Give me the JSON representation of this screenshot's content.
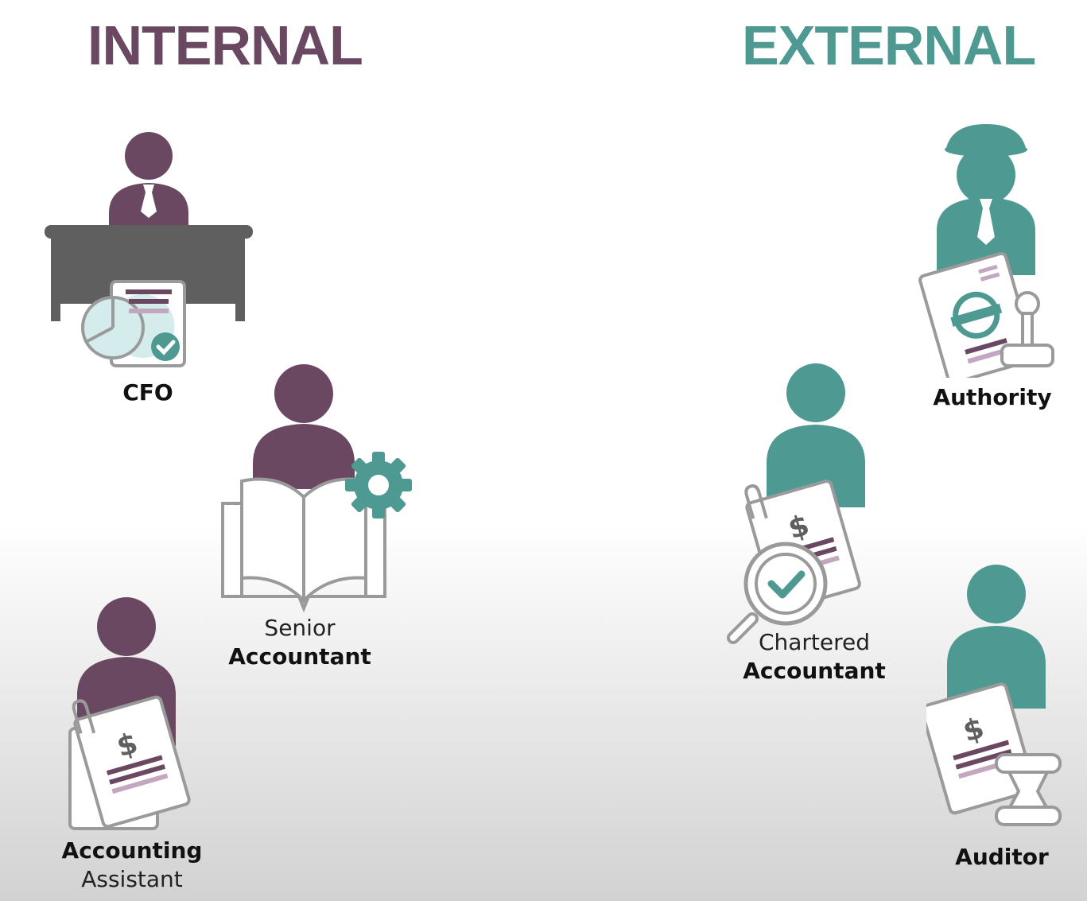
{
  "colors": {
    "internal": "#6a4862",
    "external": "#4e9992",
    "gray": "#5f5f5f",
    "line": "#9a9a9a",
    "lavender": "#c3a6c0",
    "pie": "#d4ecec"
  },
  "headings": {
    "internal": "INTERNAL",
    "external": "EXTERNAL"
  },
  "roles": {
    "cfo": {
      "bold": "CFO",
      "icon": "person-at-desk-icon"
    },
    "senior_accountant": {
      "light": "Senior",
      "bold": "Accountant",
      "icon": "person-with-book-and-gear-icon"
    },
    "accounting_assistant": {
      "bold": "Accounting",
      "light": "Assistant",
      "icon": "person-with-invoice-icon"
    },
    "authority": {
      "bold": "Authority",
      "icon": "inspector-with-stamped-document-icon"
    },
    "chartered_accountant": {
      "light": "Chartered",
      "bold": "Accountant",
      "icon": "person-with-invoice-and-magnifier-icon"
    },
    "auditor": {
      "bold": "Auditor",
      "icon": "person-with-invoice-and-gavel-icon"
    }
  },
  "symbols": {
    "dollar": "$"
  }
}
